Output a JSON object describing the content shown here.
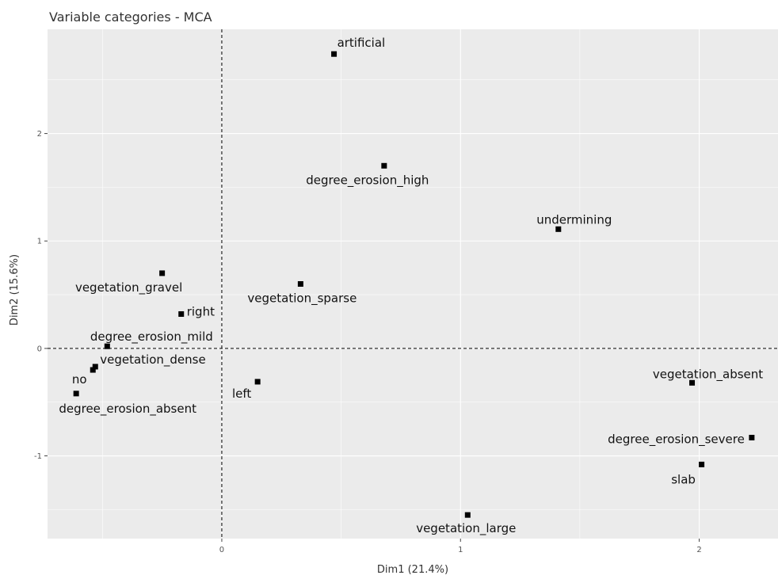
{
  "chart_data": {
    "type": "scatter",
    "title": "Variable categories - MCA",
    "xlabel": "Dim1 (21.4%)",
    "ylabel": "Dim2 (15.6%)",
    "xlim": [
      -0.73,
      2.33
    ],
    "ylim": [
      -1.77,
      2.97
    ],
    "x_ticks": [
      0,
      1,
      2
    ],
    "y_ticks": [
      -1,
      0,
      1,
      2
    ],
    "x_tick_labels": [
      "0",
      "1",
      "2"
    ],
    "y_tick_labels": [
      "-1",
      "0",
      "1",
      "2"
    ],
    "grid": true,
    "reference_lines": {
      "x": 0,
      "y": 0,
      "style": "dashed"
    },
    "points": [
      {
        "label": "artificial",
        "x": 0.47,
        "y": 2.74
      },
      {
        "label": "degree_erosion_high",
        "x": 0.68,
        "y": 1.7
      },
      {
        "label": "undermining",
        "x": 1.41,
        "y": 1.11
      },
      {
        "label": "vegetation_gravel",
        "x": -0.25,
        "y": 0.7
      },
      {
        "label": "vegetation_sparse",
        "x": 0.33,
        "y": 0.6
      },
      {
        "label": "right",
        "x": -0.17,
        "y": 0.32
      },
      {
        "label": "degree_erosion_mild",
        "x": -0.48,
        "y": 0.02
      },
      {
        "label": "vegetation_dense",
        "x": -0.53,
        "y": -0.17
      },
      {
        "label": "no",
        "x": -0.54,
        "y": -0.2
      },
      {
        "label": "degree_erosion_absent",
        "x": -0.61,
        "y": -0.42
      },
      {
        "label": "left",
        "x": 0.15,
        "y": -0.31
      },
      {
        "label": "vegetation_absent",
        "x": 1.97,
        "y": -0.32
      },
      {
        "label": "degree_erosion_severe",
        "x": 2.22,
        "y": -0.83
      },
      {
        "label": "slab",
        "x": 2.01,
        "y": -1.08
      },
      {
        "label": "vegetation_large",
        "x": 1.03,
        "y": -1.55
      }
    ]
  }
}
